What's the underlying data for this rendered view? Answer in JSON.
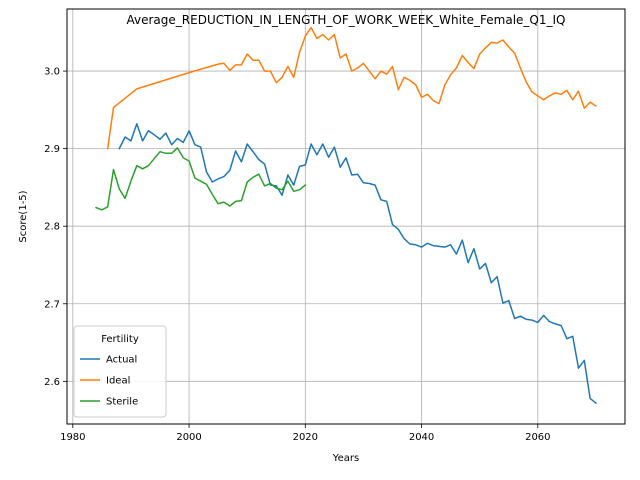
{
  "chart_data": {
    "type": "line",
    "title": "Average_REDUCTION_IN_LENGTH_OF_WORK_WEEK_White_Female_Q1_IQ",
    "xlabel": "Years",
    "ylabel": "Score(1-5)",
    "xlim": [
      1979,
      2075
    ],
    "ylim": [
      2.545,
      3.08
    ],
    "xticks": [
      1980,
      2000,
      2020,
      2040,
      2060
    ],
    "yticks": [
      2.6,
      2.7,
      2.8,
      2.9,
      3.0
    ],
    "xtick_labels": [
      "1980",
      "2000",
      "2020",
      "2040",
      "2060"
    ],
    "ytick_labels": [
      "2.6",
      "2.7",
      "2.8",
      "2.9",
      "3.0"
    ],
    "grid": true,
    "legend": {
      "title": "Fertility",
      "position": "lower-left"
    },
    "series": [
      {
        "name": "Actual",
        "color": "#1f77b4",
        "x": [
          1988,
          1989,
          1990,
          1991,
          1992,
          1993,
          1994,
          1995,
          1996,
          1997,
          1998,
          1999,
          2000,
          2001,
          2002,
          2003,
          2004,
          2005,
          2006,
          2007,
          2008,
          2009,
          2010,
          2011,
          2012,
          2013,
          2014,
          2015,
          2016,
          2017,
          2018,
          2019,
          2020,
          2021,
          2022,
          2023,
          2024,
          2025,
          2026,
          2027,
          2028,
          2029,
          2030,
          2031,
          2032,
          2033,
          2034,
          2035,
          2036,
          2037,
          2038,
          2039,
          2040,
          2041,
          2042,
          2043,
          2044,
          2045,
          2046,
          2047,
          2048,
          2049,
          2050,
          2051,
          2052,
          2053,
          2054,
          2055,
          2056,
          2057,
          2058,
          2059,
          2060,
          2061,
          2062,
          2063,
          2064,
          2065,
          2066,
          2067,
          2068,
          2069,
          2070
        ],
        "y": [
          2.9,
          2.915,
          2.91,
          2.932,
          2.91,
          2.923,
          2.918,
          2.912,
          2.92,
          2.905,
          2.913,
          2.908,
          2.923,
          2.905,
          2.902,
          2.87,
          2.857,
          2.861,
          2.864,
          2.872,
          2.897,
          2.883,
          2.906,
          2.896,
          2.886,
          2.88,
          2.853,
          2.852,
          2.84,
          2.866,
          2.853,
          2.877,
          2.879,
          2.906,
          2.892,
          2.906,
          2.889,
          2.902,
          2.876,
          2.888,
          2.866,
          2.867,
          2.856,
          2.855,
          2.853,
          2.834,
          2.832,
          2.802,
          2.796,
          2.784,
          2.777,
          2.776,
          2.773,
          2.778,
          2.775,
          2.774,
          2.773,
          2.776,
          2.764,
          2.782,
          2.753,
          2.771,
          2.745,
          2.752,
          2.727,
          2.735,
          2.701,
          2.704,
          2.681,
          2.684,
          2.68,
          2.679,
          2.676,
          2.685,
          2.677,
          2.674,
          2.672,
          2.655,
          2.658,
          2.617,
          2.627,
          2.578,
          2.572
        ]
      },
      {
        "name": "Ideal",
        "color": "#ff7f0e",
        "x": [
          1986,
          1987,
          1991,
          2000,
          2005,
          2006,
          2007,
          2008,
          2009,
          2010,
          2011,
          2012,
          2013,
          2014,
          2015,
          2016,
          2017,
          2018,
          2019,
          2020,
          2021,
          2022,
          2023,
          2024,
          2025,
          2026,
          2027,
          2028,
          2029,
          2030,
          2031,
          2032,
          2033,
          2034,
          2035,
          2036,
          2037,
          2038,
          2039,
          2040,
          2041,
          2042,
          2043,
          2044,
          2045,
          2046,
          2047,
          2048,
          2049,
          2050,
          2051,
          2052,
          2053,
          2054,
          2055,
          2056,
          2057,
          2058,
          2059,
          2060,
          2061,
          2062,
          2063,
          2064,
          2065,
          2066,
          2067,
          2068,
          2069,
          2070
        ],
        "y": [
          2.9,
          2.953,
          2.977,
          2.998,
          3.009,
          3.01,
          3.001,
          3.008,
          3.008,
          3.022,
          3.014,
          3.014,
          3.0,
          3.0,
          2.985,
          2.992,
          3.006,
          2.992,
          3.024,
          3.045,
          3.056,
          3.042,
          3.047,
          3.04,
          3.047,
          3.017,
          3.022,
          3.0,
          3.004,
          3.01,
          3.0,
          2.99,
          3.0,
          2.996,
          3.006,
          2.976,
          2.992,
          2.988,
          2.982,
          2.966,
          2.97,
          2.962,
          2.958,
          2.982,
          2.995,
          3.004,
          3.02,
          3.011,
          3.003,
          3.022,
          3.03,
          3.037,
          3.036,
          3.04,
          3.031,
          3.023,
          3.004,
          2.986,
          2.973,
          2.968,
          2.963,
          2.968,
          2.972,
          2.97,
          2.975,
          2.963,
          2.974,
          2.952,
          2.96,
          2.955
        ]
      },
      {
        "name": "Sterile",
        "color": "#2ca02c",
        "x": [
          1984,
          1985,
          1986,
          1987,
          1988,
          1989,
          1990,
          1991,
          1992,
          1993,
          1994,
          1995,
          1996,
          1997,
          1998,
          1999,
          2000,
          2001,
          2002,
          2003,
          2004,
          2005,
          2006,
          2007,
          2008,
          2009,
          2010,
          2011,
          2012,
          2013,
          2014,
          2015,
          2016,
          2017,
          2018,
          2019,
          2020
        ],
        "y": [
          2.824,
          2.821,
          2.825,
          2.873,
          2.848,
          2.836,
          2.858,
          2.878,
          2.874,
          2.878,
          2.887,
          2.896,
          2.894,
          2.894,
          2.901,
          2.888,
          2.884,
          2.862,
          2.858,
          2.854,
          2.841,
          2.829,
          2.831,
          2.826,
          2.832,
          2.833,
          2.857,
          2.863,
          2.867,
          2.852,
          2.855,
          2.849,
          2.847,
          2.858,
          2.845,
          2.847,
          2.853
        ]
      }
    ]
  }
}
